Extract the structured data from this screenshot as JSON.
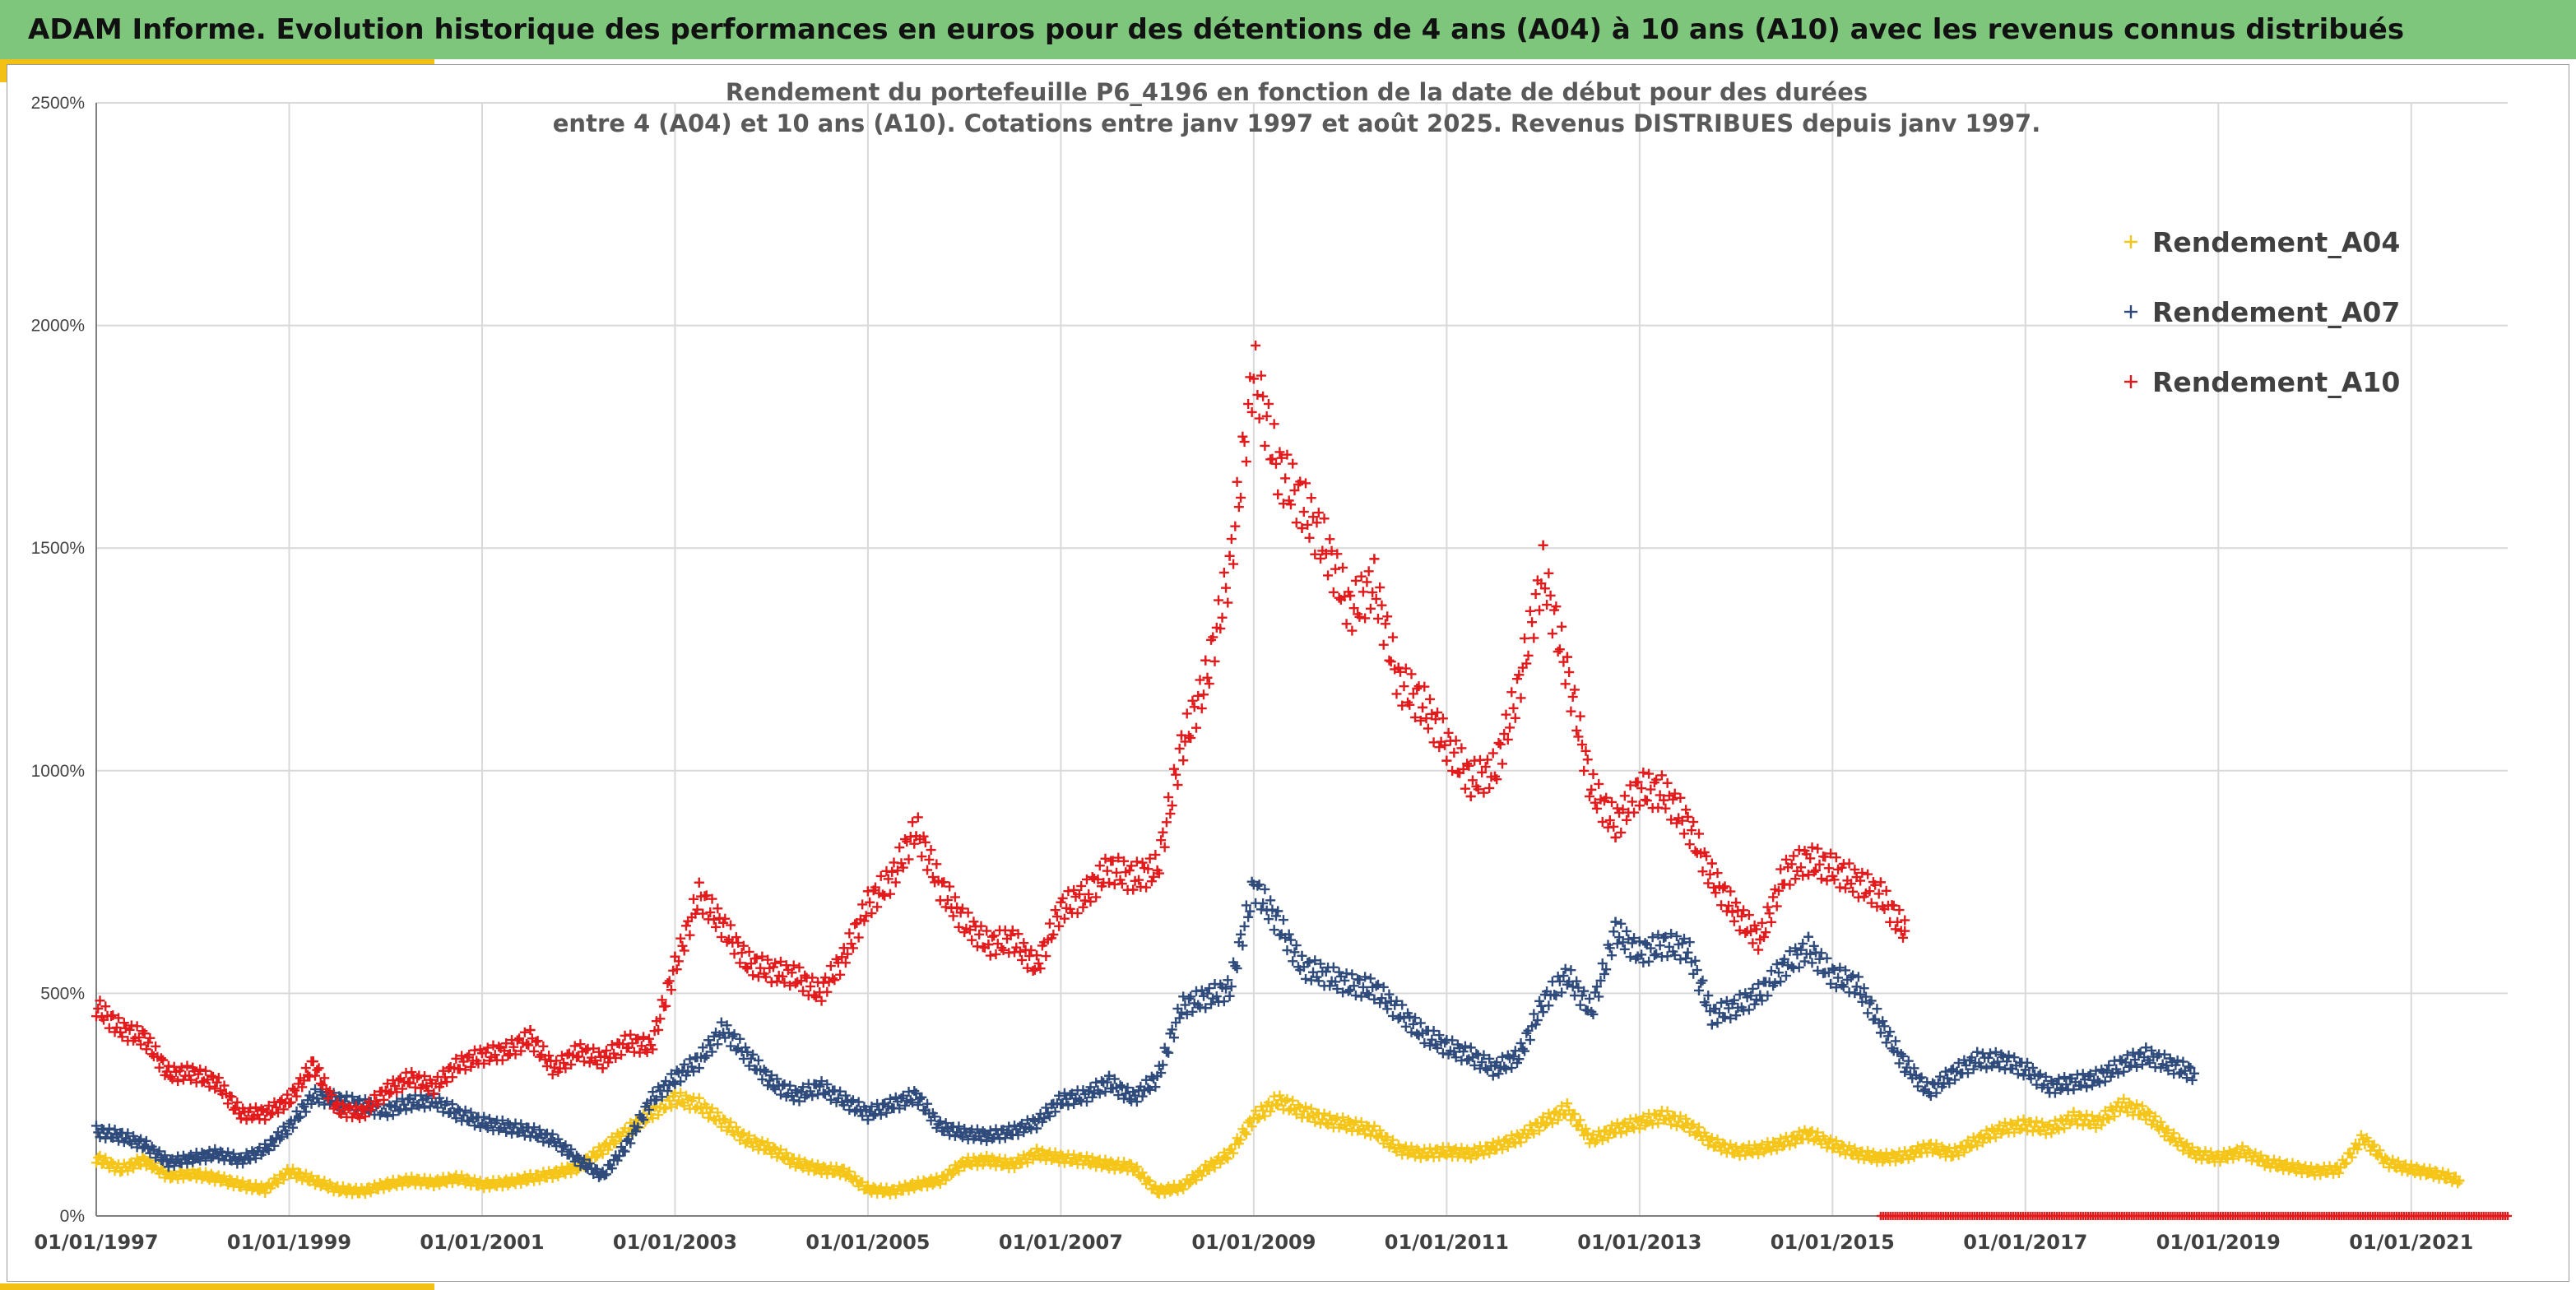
{
  "header": {
    "banner_title": "ADAM Informe. Evolution historique des performances en euros pour des détentions de 4 ans (A04) à 10 ans (A10) avec les revenus connus distribués"
  },
  "colors": {
    "banner": "#7dc67b",
    "accent": "#f3c016",
    "A04": "#f5c518",
    "A07": "#2f4b7c",
    "A10": "#e31a1c",
    "grid": "#d9d9d9"
  },
  "chart_data": {
    "type": "scatter",
    "title": [
      "Rendement du portefeuille P6_4196 en fonction de la date de début pour des durées",
      "entre 4 (A04) et 10 ans (A10). Cotations entre janv 1997 et août 2025. Revenus DISTRIBUES depuis janv 1997."
    ],
    "xlabel": "",
    "ylabel": "",
    "x_axis_type": "date",
    "xlim": [
      "1997-01-01",
      "2022-01-01"
    ],
    "ylim": [
      0,
      2500
    ],
    "y_unit": "%",
    "yticks": [
      0,
      500,
      1000,
      1500,
      2000,
      2500
    ],
    "ytick_labels": [
      "0%",
      "500%",
      "1000%",
      "1500%",
      "2000%",
      "2500%"
    ],
    "xticks": [
      "1997-01-01",
      "1999-01-01",
      "2001-01-01",
      "2003-01-01",
      "2005-01-01",
      "2007-01-01",
      "2009-01-01",
      "2011-01-01",
      "2013-01-01",
      "2015-01-01",
      "2017-01-01",
      "2019-01-01",
      "2021-01-01"
    ],
    "xtick_labels": [
      "01/01/1997",
      "01/01/1999",
      "01/01/2001",
      "01/01/2003",
      "01/01/2005",
      "01/01/2007",
      "01/01/2009",
      "01/01/2011",
      "01/01/2013",
      "01/01/2015",
      "01/01/2017",
      "01/01/2019",
      "01/01/2021"
    ],
    "grid": true,
    "legend_position": "top-right",
    "marker": "+",
    "series": [
      {
        "name": "Rendement_A04",
        "x": [
          "1997-01",
          "1997-04",
          "1997-07",
          "1997-10",
          "1998-01",
          "1998-04",
          "1998-07",
          "1998-10",
          "1999-01",
          "1999-04",
          "1999-07",
          "1999-10",
          "2000-01",
          "2000-04",
          "2000-07",
          "2000-10",
          "2001-01",
          "2001-04",
          "2001-07",
          "2001-10",
          "2002-01",
          "2002-04",
          "2002-07",
          "2002-10",
          "2003-01",
          "2003-04",
          "2003-07",
          "2003-10",
          "2004-01",
          "2004-04",
          "2004-07",
          "2004-10",
          "2005-01",
          "2005-04",
          "2005-07",
          "2005-10",
          "2006-01",
          "2006-04",
          "2006-07",
          "2006-10",
          "2007-01",
          "2007-04",
          "2007-07",
          "2007-10",
          "2008-01",
          "2008-04",
          "2008-07",
          "2008-10",
          "2009-01",
          "2009-04",
          "2009-07",
          "2009-10",
          "2010-01",
          "2010-04",
          "2010-07",
          "2010-10",
          "2011-01",
          "2011-04",
          "2011-07",
          "2011-10",
          "2012-01",
          "2012-04",
          "2012-07",
          "2012-10",
          "2013-01",
          "2013-04",
          "2013-07",
          "2013-10",
          "2014-01",
          "2014-04",
          "2014-07",
          "2014-10",
          "2015-01",
          "2015-04",
          "2015-07",
          "2015-10",
          "2016-01",
          "2016-04",
          "2016-07",
          "2016-10",
          "2017-01",
          "2017-04",
          "2017-07",
          "2017-10",
          "2018-01",
          "2018-04",
          "2018-07",
          "2018-10",
          "2019-01",
          "2019-04",
          "2019-07",
          "2019-10",
          "2020-01",
          "2020-04",
          "2020-07",
          "2020-10",
          "2021-01",
          "2021-04",
          "2021-07"
        ],
        "y": [
          130,
          105,
          125,
          90,
          95,
          85,
          70,
          60,
          100,
          80,
          60,
          55,
          70,
          80,
          75,
          85,
          70,
          75,
          85,
          95,
          110,
          150,
          190,
          230,
          265,
          250,
          210,
          170,
          150,
          120,
          105,
          100,
          60,
          55,
          70,
          80,
          120,
          125,
          115,
          140,
          130,
          125,
          115,
          110,
          55,
          65,
          105,
          140,
          220,
          260,
          235,
          215,
          205,
          190,
          150,
          140,
          145,
          140,
          155,
          175,
          210,
          240,
          170,
          195,
          210,
          225,
          205,
          165,
          145,
          150,
          165,
          185,
          160,
          140,
          130,
          135,
          155,
          140,
          170,
          195,
          205,
          195,
          220,
          210,
          250,
          230,
          180,
          140,
          130,
          145,
          120,
          110,
          100,
          105,
          175,
          120,
          105,
          95,
          80
        ]
      },
      {
        "name": "Rendement_A07",
        "x": [
          "1997-01",
          "1997-04",
          "1997-07",
          "1997-10",
          "1998-01",
          "1998-04",
          "1998-07",
          "1998-10",
          "1999-01",
          "1999-04",
          "1999-07",
          "1999-10",
          "2000-01",
          "2000-04",
          "2000-07",
          "2000-10",
          "2001-01",
          "2001-04",
          "2001-07",
          "2001-10",
          "2002-01",
          "2002-04",
          "2002-07",
          "2002-10",
          "2003-01",
          "2003-04",
          "2003-07",
          "2003-10",
          "2004-01",
          "2004-04",
          "2004-07",
          "2004-10",
          "2005-01",
          "2005-04",
          "2005-07",
          "2005-10",
          "2006-01",
          "2006-04",
          "2006-07",
          "2006-10",
          "2007-01",
          "2007-04",
          "2007-07",
          "2007-10",
          "2008-01",
          "2008-04",
          "2008-07",
          "2008-10",
          "2009-01",
          "2009-04",
          "2009-07",
          "2009-10",
          "2010-01",
          "2010-04",
          "2010-07",
          "2010-10",
          "2011-01",
          "2011-04",
          "2011-07",
          "2011-10",
          "2012-01",
          "2012-04",
          "2012-07",
          "2012-10",
          "2013-01",
          "2013-04",
          "2013-07",
          "2013-10",
          "2014-01",
          "2014-04",
          "2014-07",
          "2014-10",
          "2015-01",
          "2015-04",
          "2015-07",
          "2015-10",
          "2016-01",
          "2016-04",
          "2016-07",
          "2016-10",
          "2017-01",
          "2017-04",
          "2017-07",
          "2017-10",
          "2018-01",
          "2018-04",
          "2018-07",
          "2018-10"
        ],
        "y": [
          190,
          180,
          160,
          120,
          130,
          140,
          125,
          150,
          200,
          270,
          260,
          250,
          235,
          255,
          260,
          230,
          210,
          200,
          190,
          170,
          125,
          90,
          160,
          260,
          310,
          350,
          420,
          360,
          300,
          270,
          290,
          260,
          230,
          250,
          270,
          200,
          185,
          180,
          190,
          210,
          260,
          270,
          300,
          265,
          310,
          470,
          490,
          510,
          740,
          660,
          560,
          540,
          520,
          510,
          460,
          410,
          380,
          360,
          330,
          360,
          480,
          540,
          460,
          640,
          590,
          610,
          600,
          450,
          470,
          500,
          560,
          600,
          540,
          520,
          430,
          340,
          280,
          320,
          350,
          350,
          330,
          290,
          300,
          310,
          340,
          360,
          340,
          320
        ]
      },
      {
        "name": "Rendement_A10",
        "x": [
          "1997-01",
          "1997-04",
          "1997-07",
          "1997-10",
          "1998-01",
          "1998-04",
          "1998-07",
          "1998-10",
          "1999-01",
          "1999-04",
          "1999-07",
          "1999-10",
          "2000-01",
          "2000-04",
          "2000-07",
          "2000-10",
          "2001-01",
          "2001-04",
          "2001-07",
          "2001-10",
          "2002-01",
          "2002-04",
          "2002-07",
          "2002-10",
          "2003-01",
          "2003-04",
          "2003-07",
          "2003-10",
          "2004-01",
          "2004-04",
          "2004-07",
          "2004-10",
          "2005-01",
          "2005-04",
          "2005-07",
          "2005-10",
          "2006-01",
          "2006-04",
          "2006-07",
          "2006-10",
          "2007-01",
          "2007-04",
          "2007-07",
          "2007-10",
          "2008-01",
          "2008-04",
          "2008-07",
          "2008-10",
          "2009-01",
          "2009-04",
          "2009-07",
          "2009-10",
          "2010-01",
          "2010-04",
          "2010-07",
          "2010-10",
          "2011-01",
          "2011-04",
          "2011-07",
          "2011-10",
          "2012-01",
          "2012-04",
          "2012-07",
          "2012-10",
          "2013-01",
          "2013-04",
          "2013-07",
          "2013-10",
          "2014-01",
          "2014-04",
          "2014-07",
          "2014-10",
          "2015-01",
          "2015-04",
          "2015-07",
          "2015-10"
        ],
        "y": [
          470,
          420,
          400,
          320,
          320,
          300,
          230,
          230,
          260,
          340,
          240,
          230,
          280,
          310,
          290,
          340,
          360,
          370,
          400,
          330,
          370,
          350,
          390,
          380,
          560,
          720,
          650,
          570,
          550,
          540,
          500,
          580,
          700,
          760,
          870,
          740,
          660,
          610,
          620,
          560,
          690,
          720,
          780,
          760,
          780,
          1050,
          1200,
          1450,
          1900,
          1680,
          1600,
          1500,
          1360,
          1420,
          1200,
          1150,
          1060,
          980,
          1000,
          1190,
          1450,
          1220,
          960,
          880,
          960,
          950,
          880,
          760,
          680,
          620,
          770,
          800,
          780,
          750,
          720,
          640
        ]
      },
      {
        "name": "",
        "x": [
          "2015-07",
          "2016-01",
          "2016-07",
          "2017-01",
          "2017-07",
          "2018-01",
          "2018-07",
          "2019-01",
          "2019-07",
          "2020-01",
          "2020-07",
          "2021-01",
          "2021-07",
          "2022-01"
        ],
        "y": [
          0,
          0,
          0,
          0,
          0,
          0,
          0,
          0,
          0,
          0,
          0,
          0,
          0,
          0
        ],
        "color_of": "A10",
        "note_visible": false
      }
    ]
  }
}
